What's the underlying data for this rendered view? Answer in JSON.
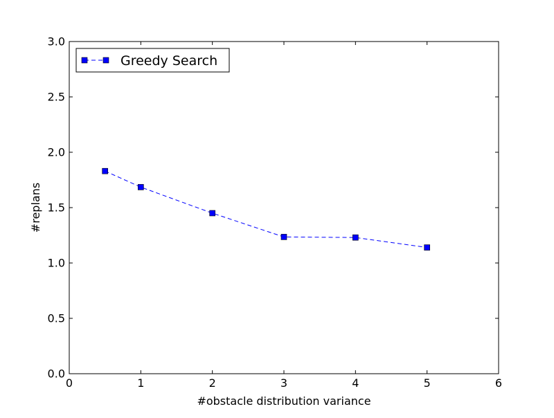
{
  "chart_data": {
    "type": "line",
    "title": "",
    "xlabel": "#obstacle distribution variance",
    "ylabel": "#replans",
    "xlim": [
      0,
      6
    ],
    "ylim": [
      0.0,
      3.0
    ],
    "xticks": [
      0,
      1,
      2,
      3,
      4,
      5,
      6
    ],
    "xtick_labels": [
      "0",
      "1",
      "2",
      "3",
      "4",
      "5",
      "6"
    ],
    "yticks": [
      0.0,
      0.5,
      1.0,
      1.5,
      2.0,
      2.5,
      3.0
    ],
    "ytick_labels": [
      "0.0",
      "0.5",
      "1.0",
      "1.5",
      "2.0",
      "2.5",
      "3.0"
    ],
    "grid": false,
    "legend": {
      "placement": "top-left"
    },
    "series": [
      {
        "name": "Greedy Search",
        "color": "#0000ff",
        "line_style": "dashed",
        "marker": "square",
        "x": [
          0.5,
          1,
          2,
          3,
          4,
          5
        ],
        "y": [
          1.83,
          1.685,
          1.45,
          1.235,
          1.23,
          1.14
        ]
      }
    ]
  }
}
